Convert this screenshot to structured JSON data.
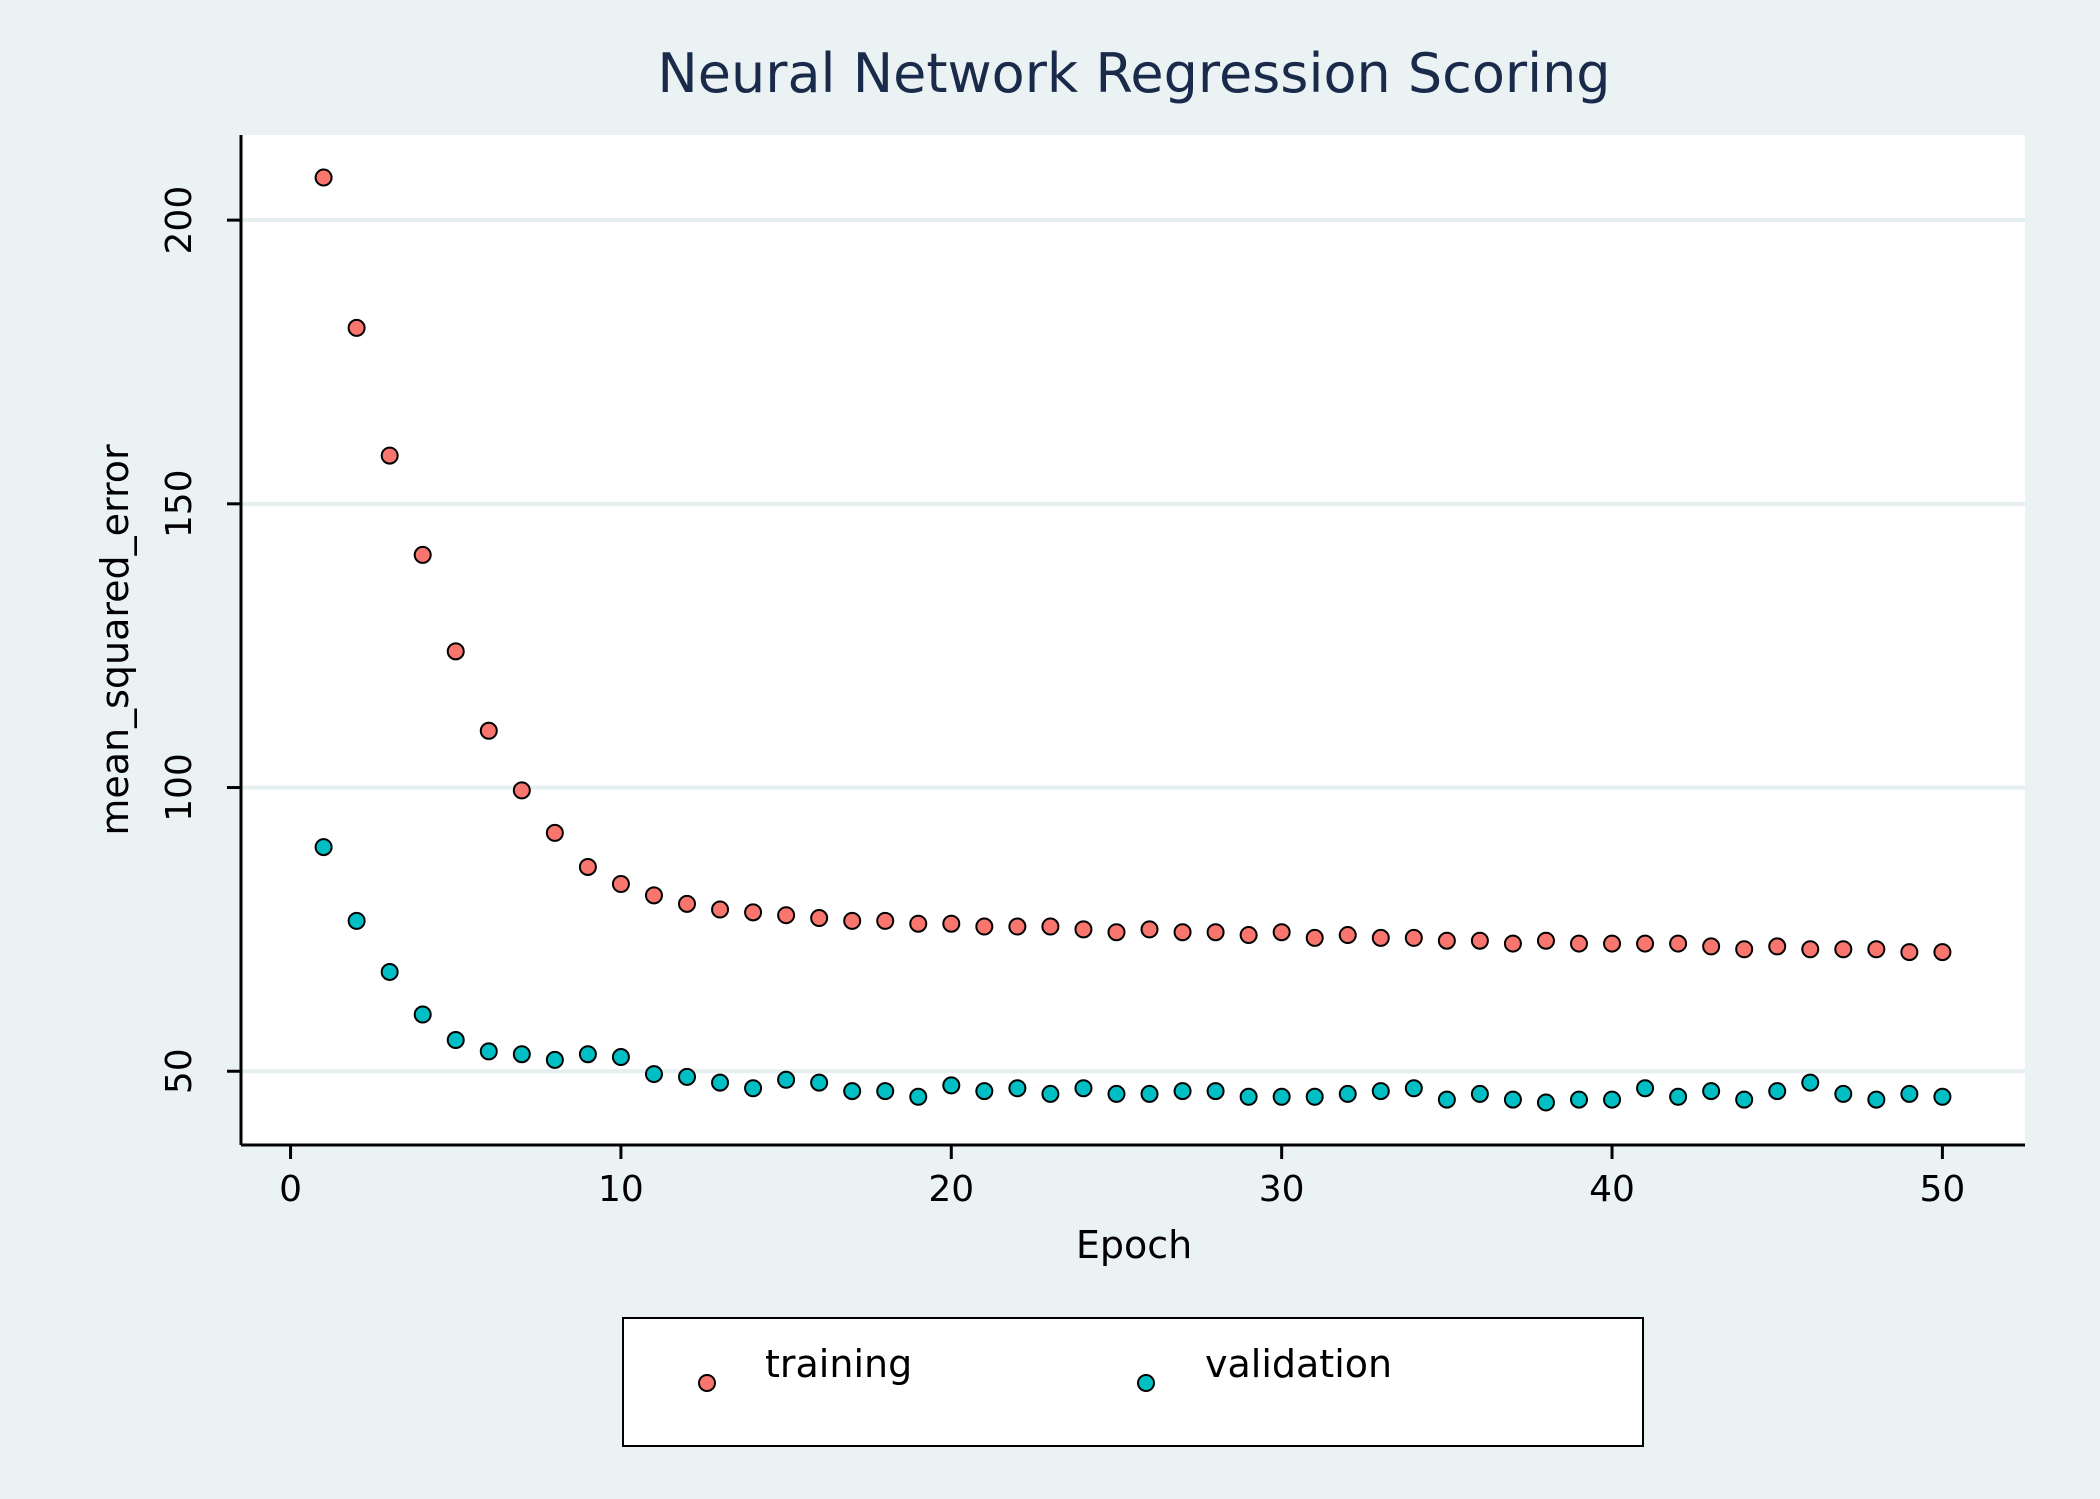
{
  "chart_data": {
    "type": "scatter",
    "title": "Neural Network Regression Scoring",
    "xlabel": "Epoch",
    "ylabel": "mean_squared_error",
    "xlim": [
      -1.5,
      52.5
    ],
    "ylim": [
      37,
      215
    ],
    "xticks": [
      "0",
      "10",
      "20",
      "30",
      "40",
      "50"
    ],
    "yticks": [
      "50",
      "100",
      "150",
      "200"
    ],
    "grid": "horizontal",
    "legend_position": "bottom",
    "background": "#eaf2f3",
    "plot_background": "#ffffff",
    "x": [
      1,
      2,
      3,
      4,
      5,
      6,
      7,
      8,
      9,
      10,
      11,
      12,
      13,
      14,
      15,
      16,
      17,
      18,
      19,
      20,
      21,
      22,
      23,
      24,
      25,
      26,
      27,
      28,
      29,
      30,
      31,
      32,
      33,
      34,
      35,
      36,
      37,
      38,
      39,
      40,
      41,
      42,
      43,
      44,
      45,
      46,
      47,
      48,
      49,
      50
    ],
    "series": [
      {
        "name": "training",
        "color": "#f8766d",
        "values": [
          207.5,
          181,
          158.5,
          141,
          124,
          110,
          99.5,
          92,
          86,
          83,
          81,
          79.5,
          78.5,
          78,
          77.5,
          77,
          76.5,
          76.5,
          76,
          76,
          75.5,
          75.5,
          75.5,
          75,
          74.5,
          75,
          74.5,
          74.5,
          74,
          74.5,
          73.5,
          74,
          73.5,
          73.5,
          73,
          73,
          72.5,
          73,
          72.5,
          72.5,
          72.5,
          72.5,
          72,
          71.5,
          72,
          71.5,
          71.5,
          71.5,
          71,
          71
        ]
      },
      {
        "name": "validation",
        "color": "#00bfc4",
        "values": [
          89.5,
          76.5,
          67.5,
          60,
          55.5,
          53.5,
          53,
          52,
          53,
          52.5,
          49.5,
          49,
          48,
          47,
          48.5,
          48,
          46.5,
          46.5,
          45.5,
          47.5,
          46.5,
          47,
          46,
          47,
          46,
          46,
          46.5,
          46.5,
          45.5,
          45.5,
          45.5,
          46,
          46.5,
          47,
          45,
          46,
          45,
          44.5,
          45,
          45,
          47,
          45.5,
          46.5,
          45,
          46.5,
          48,
          46,
          45,
          46,
          45.5
        ]
      }
    ]
  }
}
